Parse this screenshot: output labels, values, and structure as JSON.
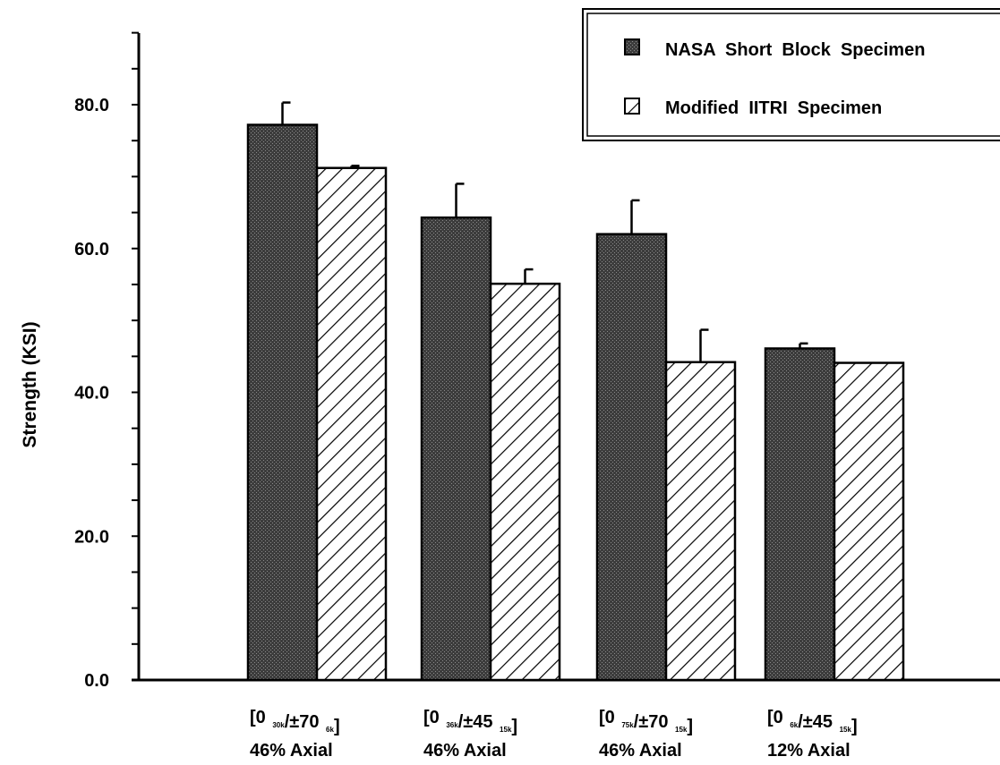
{
  "chart_data": {
    "type": "bar",
    "title": "",
    "xlabel": "",
    "ylabel": "Strength  (KSI)",
    "ylim": [
      0,
      90
    ],
    "y_ticks": [
      0,
      20,
      40,
      60,
      80
    ],
    "y_tick_labels": [
      "0.0",
      "20.0",
      "40.0",
      "60.0",
      "80.0"
    ],
    "grid": false,
    "legend_position": "top-right",
    "categories": [
      {
        "label": "[0 30k/±70 6k] 46% Axial",
        "parts": [
          {
            "text": "[0 ",
            "sub": false
          },
          {
            "text": "30k",
            "sub": true
          },
          {
            "text": "/±70 ",
            "sub": false
          },
          {
            "text": "6k",
            "sub": true
          },
          {
            "text": "]",
            "sub": false
          }
        ],
        "line2": "46%  Axial"
      },
      {
        "label": "[0 36k/±45 15k] 46% Axial",
        "parts": [
          {
            "text": "[0 ",
            "sub": false
          },
          {
            "text": "36k",
            "sub": true
          },
          {
            "text": "/±45 ",
            "sub": false
          },
          {
            "text": "15k",
            "sub": true
          },
          {
            "text": "]",
            "sub": false
          }
        ],
        "line2": "46%  Axial"
      },
      {
        "label": "[0 75k/±70 15k] 46% Axial",
        "parts": [
          {
            "text": "[0 ",
            "sub": false
          },
          {
            "text": "75k",
            "sub": true
          },
          {
            "text": "/±70 ",
            "sub": false
          },
          {
            "text": "15k",
            "sub": true
          },
          {
            "text": "]",
            "sub": false
          }
        ],
        "line2": "46%  Axial"
      },
      {
        "label": "[0 6k/±45 15k] 12% Axial",
        "parts": [
          {
            "text": "[0 ",
            "sub": false
          },
          {
            "text": "6k",
            "sub": true
          },
          {
            "text": "/±45 ",
            "sub": false
          },
          {
            "text": "15k",
            "sub": true
          },
          {
            "text": "]",
            "sub": false
          }
        ],
        "line2": "12%  Axial"
      }
    ],
    "series": [
      {
        "name": "NASA  Short  Block  Specimen",
        "pattern": "dark-stipple",
        "values": [
          77.2,
          64.3,
          62.0,
          46.1
        ],
        "error_upper": [
          80.3,
          69.0,
          66.7,
          46.8
        ]
      },
      {
        "name": "Modified  IITRI  Specimen",
        "pattern": "diagonal-hatch",
        "values": [
          71.2,
          55.1,
          44.2,
          44.1
        ],
        "error_upper": [
          71.5,
          57.1,
          48.7,
          44.1
        ]
      }
    ],
    "colors": {
      "nasa_fill": "#3c3c3c",
      "ink": "#000000",
      "background": "#ffffff"
    }
  }
}
